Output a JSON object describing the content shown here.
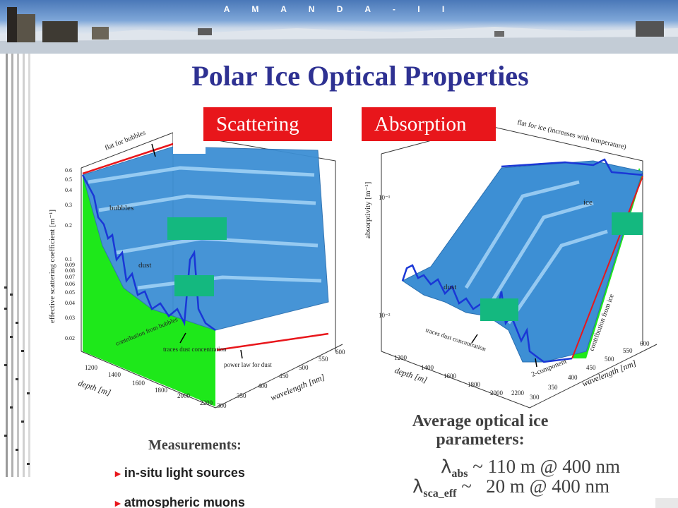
{
  "banner": {
    "title": "A M A N D A - I I"
  },
  "slide": {
    "title": "Polar Ice Optical Properties"
  },
  "tags": {
    "scattering": "Scattering",
    "absorption": "Absorption"
  },
  "scatter_plot": {
    "ylabel": "effective scattering coefficient [m⁻¹]",
    "y_ticks": [
      "0.6",
      "0.5",
      "0.4",
      "0.3",
      "0.2",
      "0.1",
      "0.09",
      "0.08",
      "0.07",
      "0.06",
      "0.05",
      "0.04",
      "0.03",
      "0.02"
    ],
    "depth_label": "depth [m]",
    "depth_ticks": [
      "1200",
      "1400",
      "1600",
      "1800",
      "2000",
      "2200"
    ],
    "wavelength_label": "wavelength [nm]",
    "wavelength_ticks": [
      "300",
      "350",
      "400",
      "450",
      "500",
      "550",
      "600"
    ],
    "annotations": {
      "flat": "flat for bubbles",
      "bubbles": "bubbles",
      "dust": "dust",
      "contribution": "contribution from bubbles",
      "traces": "traces dust concentration",
      "power": "power law for dust"
    }
  },
  "absorb_plot": {
    "ylabel": "absorptivity [m⁻¹]",
    "y_ticks": [
      "10⁻¹",
      "10⁻²"
    ],
    "depth_label": "depth [m]",
    "depth_ticks": [
      "1200",
      "1400",
      "1600",
      "1800",
      "2000",
      "2200"
    ],
    "wavelength_label": "wavelength [nm]",
    "wavelength_ticks": [
      "300",
      "350",
      "400",
      "450",
      "500",
      "550",
      "600"
    ],
    "annotations": {
      "flat": "flat for ice (increases with temperature)",
      "ice": "ice",
      "dust": "dust",
      "traces": "traces dust concentration",
      "two_component": "2-component",
      "contribution": "contribution from ice"
    }
  },
  "average": {
    "title": "Average optical ice parameters:",
    "abs_symbol": "λ",
    "abs_sub": "abs",
    "abs_value": " ~ 110 m @ 400 nm",
    "sca_symbol": "λ",
    "sca_sub": "sca_eff",
    "sca_value": " ~   20 m @ 400 nm"
  },
  "measurements": {
    "title": "Measurements:",
    "items": [
      "in-situ light sources",
      "atmospheric muons"
    ]
  },
  "colors": {
    "title": "#2e3192",
    "tag": "#e8161b",
    "surface": "#3d8fd4",
    "green": "#14b87f",
    "fill_green": "#1ee81a"
  }
}
